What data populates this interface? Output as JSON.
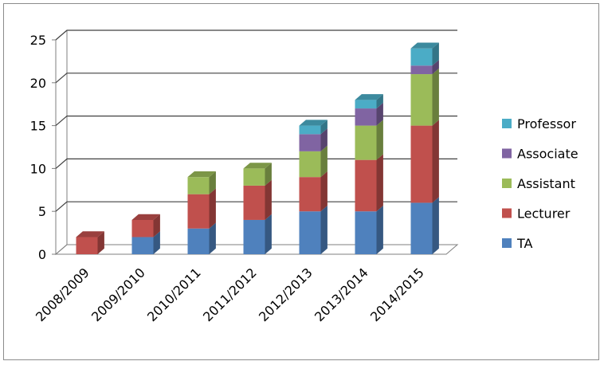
{
  "chart_data": {
    "type": "bar",
    "stacked": true,
    "three_d": true,
    "categories": [
      "2008/2009",
      "2009/2010",
      "2010/2011",
      "2011/2012",
      "2012/2013",
      "2013/2014",
      "2014/2015"
    ],
    "series": [
      {
        "name": "TA",
        "color": "#4F81BD",
        "values": [
          0,
          2,
          3,
          4,
          5,
          5,
          6
        ]
      },
      {
        "name": "Lecturer",
        "color": "#C0504D",
        "values": [
          2,
          2,
          4,
          4,
          4,
          6,
          9
        ]
      },
      {
        "name": "Assistant",
        "color": "#9BBB59",
        "values": [
          0,
          0,
          2,
          2,
          3,
          4,
          6
        ]
      },
      {
        "name": "Associate",
        "color": "#8064A2",
        "values": [
          0,
          0,
          0,
          0,
          2,
          2,
          1
        ]
      },
      {
        "name": "Professor",
        "color": "#4BACC6",
        "values": [
          0,
          0,
          0,
          0,
          1,
          1,
          2
        ]
      }
    ],
    "yticks": [
      "0",
      "5",
      "10",
      "15",
      "20",
      "25"
    ],
    "ylim": [
      0,
      25
    ],
    "grid": true,
    "legend_position": "right"
  }
}
